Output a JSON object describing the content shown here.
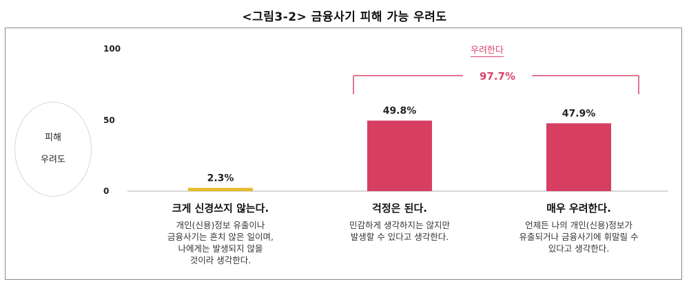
{
  "figure_title": "<그림3-2> 금융사기 피해 가능 우려도",
  "y_axis_label_line1": "피해",
  "y_axis_label_line2": "우려도",
  "colors": {
    "low": "#e8bb2c",
    "high": "#d63e62",
    "bracket": "#d9456a",
    "axis": "#c8c8c8"
  },
  "chart_data": {
    "type": "bar",
    "title": "<그림3-2> 금융사기 피해 가능 우려도",
    "ylabel": "피해 우려도",
    "ylim": [
      0,
      100
    ],
    "yticks": [
      "0",
      "50",
      "100"
    ],
    "categories": [
      "크게 신경쓰지 않는다.",
      "걱정은 된다.",
      "매우 우려한다."
    ],
    "values": [
      2.3,
      49.8,
      47.9
    ],
    "value_labels": [
      "2.3%",
      "49.8%",
      "47.9%"
    ],
    "descriptions": [
      [
        "개인(신용)정보 유출이나",
        "금융사기는 흔치 않은 일이며,",
        "나에게는 발생되지 않을",
        "것이라 생각한다."
      ],
      [
        "민감하게 생각하지는 않지만",
        "발생할 수 있다고 생각한다."
      ],
      [
        "언제든 나의 개인(신용)정보가",
        "유출되거나 금융사기에 휘말릴 수",
        "있다고 생각한다."
      ]
    ],
    "bracket_label": "우려한다",
    "bracket_value": "97.7%"
  }
}
